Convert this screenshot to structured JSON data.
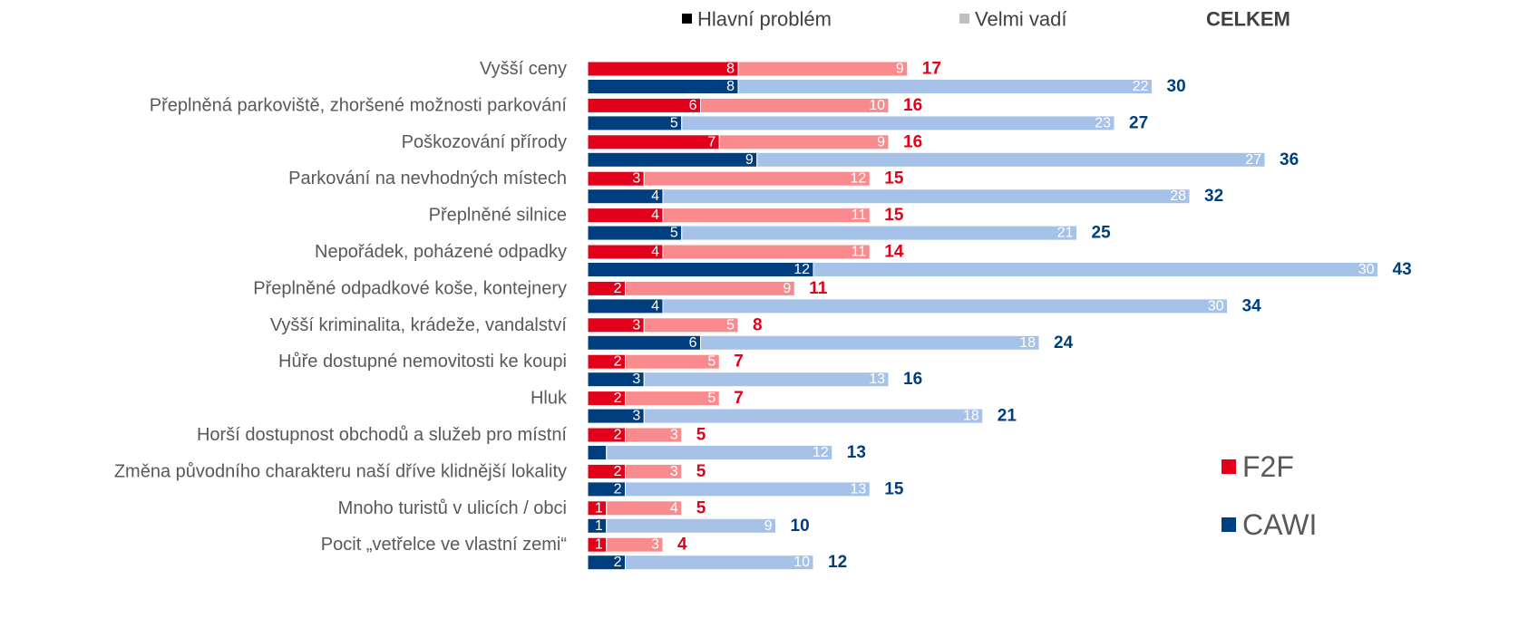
{
  "chart_data": {
    "type": "bar",
    "categories": [
      "Vyšší ceny",
      "Přeplněná parkoviště, zhoršené možnosti parkování",
      "Poškozování přírody",
      "Parkování na nevhodných místech",
      "Přeplněné silnice",
      "Nepořádek, poházené odpadky",
      "Přeplněné odpadkové koše, kontejnery",
      "Vyšší kriminalita, krádeže, vandalství",
      "Hůře dostupné nemovitosti ke koupi",
      "Hluk",
      "Horší dostupnost obchodů a služeb pro místní",
      "Změna původního charakteru naší dříve klidnější lokality",
      "Mnoho turistů v ulicích / obci",
      "Pocit „vetřelce ve vlastní zemi“"
    ],
    "segments": [
      {
        "name": "Hlavní problém",
        "color": "#000000"
      },
      {
        "name": "Velmi vadí",
        "color": "#bfbfbf"
      }
    ],
    "total_label": "CELKEM",
    "series": [
      {
        "name": "F2F",
        "color": "#e2001a",
        "light_color": "#f98a8d",
        "main": [
          8,
          6,
          7,
          3,
          4,
          4,
          2,
          3,
          2,
          2,
          2,
          2,
          1,
          1
        ],
        "severe": [
          9,
          10,
          9,
          12,
          11,
          11,
          9,
          5,
          5,
          5,
          3,
          3,
          4,
          3
        ],
        "totals": [
          17,
          16,
          16,
          15,
          15,
          14,
          11,
          8,
          7,
          7,
          5,
          5,
          5,
          4
        ]
      },
      {
        "name": "CAWI",
        "color": "#003f7f",
        "light_color": "#a6c2e8",
        "main": [
          8,
          5,
          9,
          4,
          5,
          12,
          4,
          6,
          3,
          3,
          1,
          2,
          1,
          2
        ],
        "main_labels": [
          "8",
          "5",
          "9",
          "4",
          "5",
          "12",
          "4",
          "6",
          "3",
          "3",
          null,
          "2",
          "1",
          "2"
        ],
        "severe": [
          22,
          23,
          27,
          28,
          21,
          30,
          30,
          18,
          13,
          18,
          12,
          13,
          9,
          10
        ],
        "totals": [
          30,
          27,
          36,
          32,
          25,
          43,
          34,
          24,
          16,
          21,
          13,
          15,
          10,
          12
        ]
      }
    ]
  }
}
